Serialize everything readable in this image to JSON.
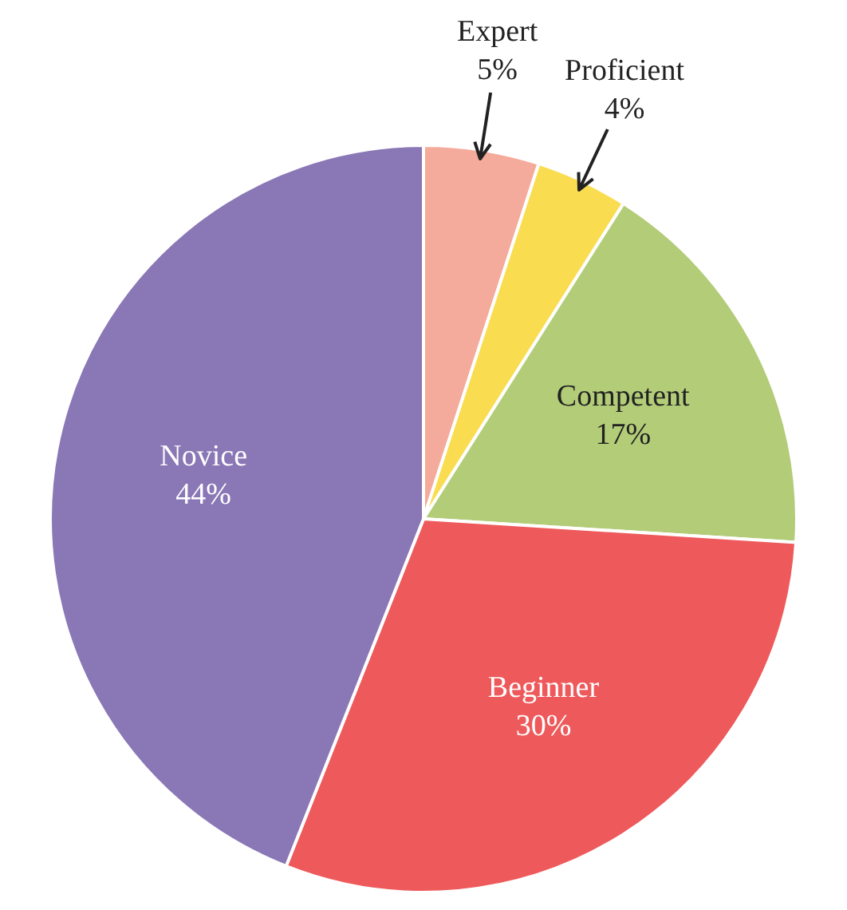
{
  "chart_data": {
    "type": "pie",
    "categories": [
      "Expert",
      "Proficient",
      "Competent",
      "Beginner",
      "Novice"
    ],
    "values": [
      5,
      4,
      17,
      30,
      44
    ],
    "value_labels": [
      "5%",
      "4%",
      "17%",
      "30%",
      "44%"
    ],
    "colors": [
      "#f5ab9b",
      "#f9dc4f",
      "#b3cc78",
      "#ee5a5b",
      "#8a77b6"
    ],
    "legend": false
  }
}
